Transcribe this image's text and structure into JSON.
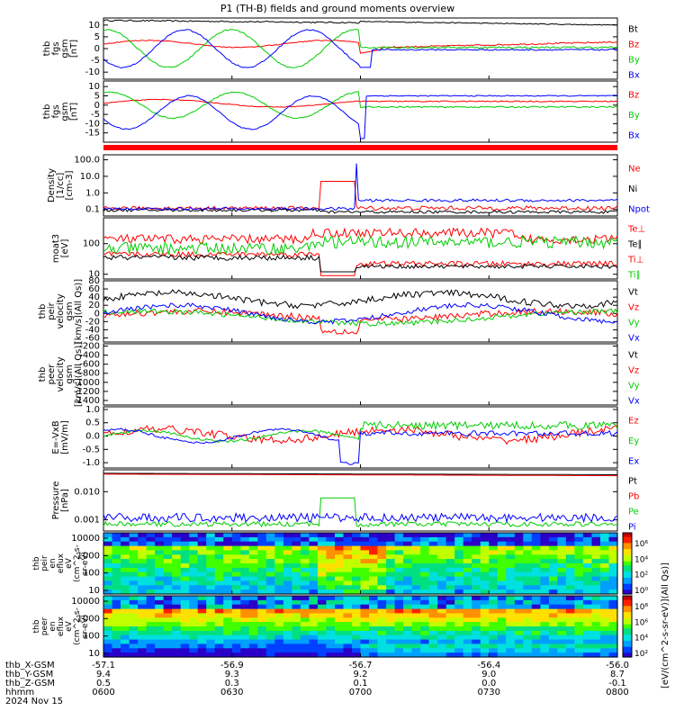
{
  "page": {
    "title": "P1 (TH-B) fields and ground moments overview",
    "date": "2024 Nov 15"
  },
  "chart_data": {
    "type": "line",
    "time_axis": {
      "label": "hhmm",
      "ticks": [
        "0600",
        "0630",
        "0700",
        "0730",
        "0800"
      ]
    },
    "ephemeris": [
      {
        "label": "thb_X-GSM",
        "values": [
          "-57.1",
          "-56.9",
          "-56.7",
          "-56.4",
          "-56.0"
        ]
      },
      {
        "label": "thb_Y-GSM",
        "values": [
          "9.4",
          "9.3",
          "9.2",
          "9.0",
          "8.7"
        ]
      },
      {
        "label": "thb_Z-GSM",
        "values": [
          "0.5",
          "0.3",
          "0.1",
          "0.0",
          "-0.1"
        ]
      }
    ],
    "panels": [
      {
        "id": "fgs_gsm",
        "ylabel": [
          "thb",
          "fgs",
          "gsm",
          "[nT]"
        ],
        "yticks": [
          "10",
          "5",
          "0",
          "-5",
          "-10"
        ],
        "ylim": [
          -13,
          13
        ],
        "log": false,
        "series": [
          {
            "name": "Bt",
            "color": "#000000"
          },
          {
            "name": "Bz",
            "color": "#ff0000"
          },
          {
            "name": "By",
            "color": "#00cc00"
          },
          {
            "name": "Bx",
            "color": "#0000ff"
          }
        ]
      },
      {
        "id": "fgs_gse",
        "ylabel": [
          "thb",
          "fgs",
          "gsm",
          "[nT]"
        ],
        "yticks": [
          "10",
          "5",
          "0",
          "-5",
          "-10",
          "-15"
        ],
        "ylim": [
          -20,
          13
        ],
        "log": false,
        "series": [
          {
            "name": "Bz",
            "color": "#ff0000"
          },
          {
            "name": "By",
            "color": "#00cc00"
          },
          {
            "name": "Bx",
            "color": "#0000ff"
          }
        ]
      },
      {
        "id": "density",
        "ylabel": [
          "Density",
          "[1/cc]",
          "[cm-3]"
        ],
        "yticks": [
          "100.0",
          "10.0",
          "1.0",
          "0.1"
        ],
        "ylim": [
          0.04,
          200
        ],
        "log": true,
        "series": [
          {
            "name": "Ne",
            "color": "#ff0000"
          },
          {
            "name": "Ni",
            "color": "#000000"
          },
          {
            "name": "Npot",
            "color": "#0000ff"
          }
        ]
      },
      {
        "id": "temp",
        "ylabel": [
          "moat3",
          "[eV]"
        ],
        "yticks": [
          "100",
          "10"
        ],
        "ylim": [
          7,
          700
        ],
        "log": true,
        "series": [
          {
            "name": "Te⊥",
            "color": "#ff0000"
          },
          {
            "name": "Te∥",
            "color": "#000000"
          },
          {
            "name": "Ti⊥",
            "color": "#ff0000"
          },
          {
            "name": "Ti∥",
            "color": "#00cc00"
          }
        ]
      },
      {
        "id": "peir_vel",
        "ylabel": [
          "thb",
          "peir",
          "velocity",
          "gsm",
          "[km/s](All Qs)]"
        ],
        "yticks": [
          "80",
          "60",
          "40",
          "20",
          "0",
          "-20",
          "-40",
          "-60"
        ],
        "ylim": [
          -70,
          80
        ],
        "log": false,
        "series": [
          {
            "name": "Vt",
            "color": "#000000"
          },
          {
            "name": "Vz",
            "color": "#ff0000"
          },
          {
            "name": "Vy",
            "color": "#00cc00"
          },
          {
            "name": "Vx",
            "color": "#0000ff"
          }
        ]
      },
      {
        "id": "peer_vel",
        "ylabel": [
          "thb",
          "peer",
          "velocity",
          "gsm",
          "[km/s](All Qs)]"
        ],
        "yticks": [
          "-200",
          "-400",
          "-600",
          "-800",
          "-1000",
          "-1200",
          "-1400"
        ],
        "ylim": [
          -1500,
          -150
        ],
        "log": false,
        "series": [
          {
            "name": "Vt",
            "color": "#000000"
          },
          {
            "name": "Vz",
            "color": "#ff0000"
          },
          {
            "name": "Vy",
            "color": "#00cc00"
          },
          {
            "name": "Vx",
            "color": "#0000ff"
          }
        ]
      },
      {
        "id": "efield",
        "ylabel": [
          "E=-VxB",
          "[mV/m]"
        ],
        "yticks": [
          "1.0",
          "0.5",
          "0.0",
          "-0.5",
          "-1.0"
        ],
        "ylim": [
          -1.2,
          1.1
        ],
        "log": false,
        "series": [
          {
            "name": "Ez",
            "color": "#ff0000"
          },
          {
            "name": "Ey",
            "color": "#00cc00"
          },
          {
            "name": "Ex",
            "color": "#0000ff"
          }
        ]
      },
      {
        "id": "pressure",
        "ylabel": [
          "Pressure",
          "[nPa]"
        ],
        "yticks": [
          "0.010",
          "0.001"
        ],
        "ylim": [
          0.0004,
          0.06
        ],
        "log": true,
        "series": [
          {
            "name": "Pt",
            "color": "#000000"
          },
          {
            "name": "Pb",
            "color": "#ff0000"
          },
          {
            "name": "Pe",
            "color": "#00cc00"
          },
          {
            "name": "Pi",
            "color": "#0000ff"
          }
        ]
      }
    ],
    "spectrograms": [
      {
        "id": "peir_eflux",
        "ylabel": [
          "thb",
          "peir",
          "en",
          "eflux",
          "eV",
          "(cm^2-s-",
          "sr-eV)"
        ],
        "yticks": [
          "10000",
          "1000",
          "100",
          "10"
        ],
        "colorbar": {
          "ticks": [
            "10⁶",
            "10⁴",
            "10²",
            "10⁰"
          ],
          "label": "[eV/(cm^2-s-sr-eV)](All Qs)]"
        }
      },
      {
        "id": "peer_eflux",
        "ylabel": [
          "thb",
          "peer",
          "en",
          "eflux",
          "eV",
          "(cm^2-s-",
          "sr-eV)"
        ],
        "yticks": [
          "10000",
          "1000",
          "100",
          "10"
        ],
        "colorbar": {
          "ticks": [
            "10⁸",
            "10⁶",
            "10⁴",
            "10²"
          ],
          "label": "[eV/(cm^2-s-sr-eV)](All Qs)]"
        }
      }
    ]
  }
}
